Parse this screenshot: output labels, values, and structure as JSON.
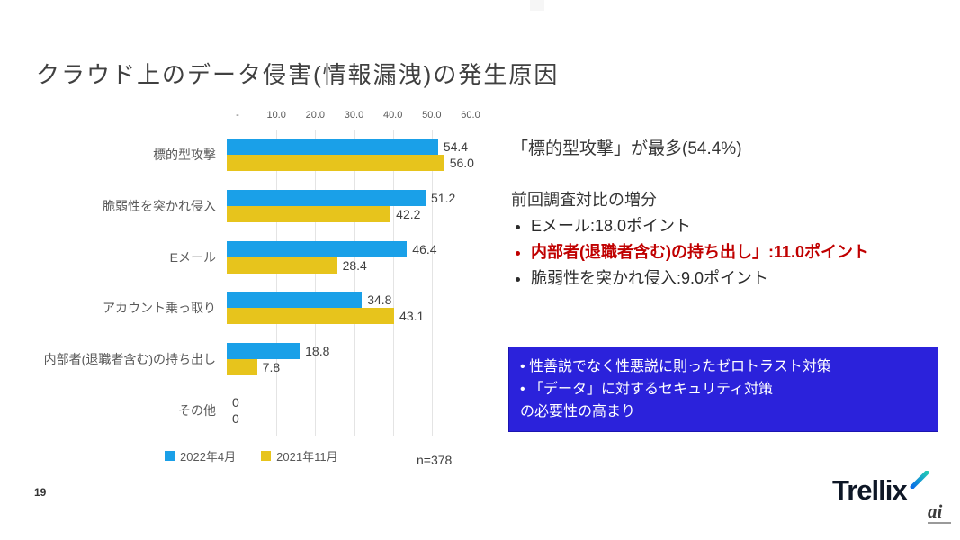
{
  "slide": {
    "title": "クラウド上のデータ侵害(情報漏洩)の発生原因",
    "page_number": "19"
  },
  "chart_data": {
    "type": "bar",
    "orientation": "horizontal",
    "title": "",
    "categories": [
      "標的型攻撃",
      "脆弱性を突かれ侵入",
      "Eメール",
      "アカウント乗っ取り",
      "内部者(退職者含む)の持ち出し",
      "その他"
    ],
    "series": [
      {
        "name": "2022年4月",
        "color": "#1AA0E8",
        "values": [
          54.4,
          51.2,
          46.4,
          34.8,
          18.8,
          0
        ]
      },
      {
        "name": "2021年11月",
        "color": "#E7C41C",
        "values": [
          56.0,
          42.2,
          28.4,
          43.1,
          7.8,
          0
        ]
      }
    ],
    "value_labels": [
      [
        "54.4",
        "56.0"
      ],
      [
        "51.2",
        "42.2"
      ],
      [
        "46.4",
        "28.4"
      ],
      [
        "34.8",
        "43.1"
      ],
      [
        "18.8",
        "7.8"
      ],
      [
        "0",
        "0"
      ]
    ],
    "xlim": [
      0,
      60
    ],
    "x_ticks": [
      "-",
      "10.0",
      "20.0",
      "30.0",
      "40.0",
      "50.0",
      "60.0"
    ],
    "grid": true,
    "legend_position": "bottom",
    "sample_size": "n=378"
  },
  "annotations": {
    "headline": "「標的型攻撃」が最多(54.4%)",
    "delta_title": "前回調査対比の増分",
    "delta_items": [
      {
        "text": "Eメール:18.0ポイント",
        "emphasis": false
      },
      {
        "text": "内部者(退職者含む)の持ち出し」:11.0ポイント",
        "emphasis": true
      },
      {
        "text": "脆弱性を突かれ侵入:9.0ポイント",
        "emphasis": false
      }
    ],
    "callout_box": {
      "bg_color": "#2B22DB",
      "text_color": "#ffffff",
      "lines": [
        "•  性善説でなく性悪説に則ったゼロトラスト対策",
        "•  「データ」に対するセキュリティ対策",
        "の必要性の高まり"
      ]
    }
  },
  "branding": {
    "logo_text": "Trellix",
    "watermark": "ai"
  }
}
